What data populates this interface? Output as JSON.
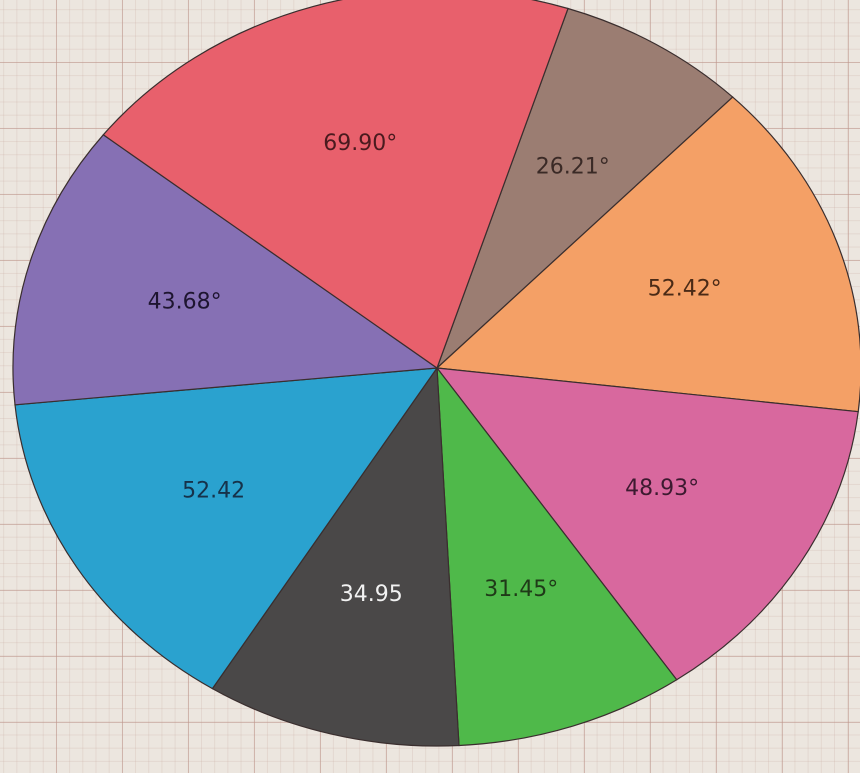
{
  "chart_data": {
    "type": "pie",
    "title": "",
    "slices": [
      {
        "label": "26.21°",
        "value": 26.21,
        "color": "#9b7d72",
        "text_color": "#3a2a26"
      },
      {
        "label": "52.42°",
        "value": 52.42,
        "color": "#f4a066",
        "text_color": "#4a2a16"
      },
      {
        "label": "48.93°",
        "value": 48.93,
        "color": "#d8689e",
        "text_color": "#3d1a30"
      },
      {
        "label": "31.45°",
        "value": 31.45,
        "color": "#4fb94a",
        "text_color": "#1f3a18"
      },
      {
        "label": "34.95",
        "value": 34.95,
        "color": "#4a4848",
        "text_color": "#f2f2f2"
      },
      {
        "label": "52.42",
        "value": 52.42,
        "color": "#2aa2cf",
        "text_color": "#16324a"
      },
      {
        "label": "43.68°",
        "value": 43.68,
        "color": "#8670b4",
        "text_color": "#1e1530"
      },
      {
        "label": "69.90°",
        "value": 69.9,
        "color": "#e8606c",
        "text_color": "#4a1a1e"
      }
    ],
    "start_angle_deg": -72,
    "direction": "clockwise",
    "background": "graph paper"
  }
}
